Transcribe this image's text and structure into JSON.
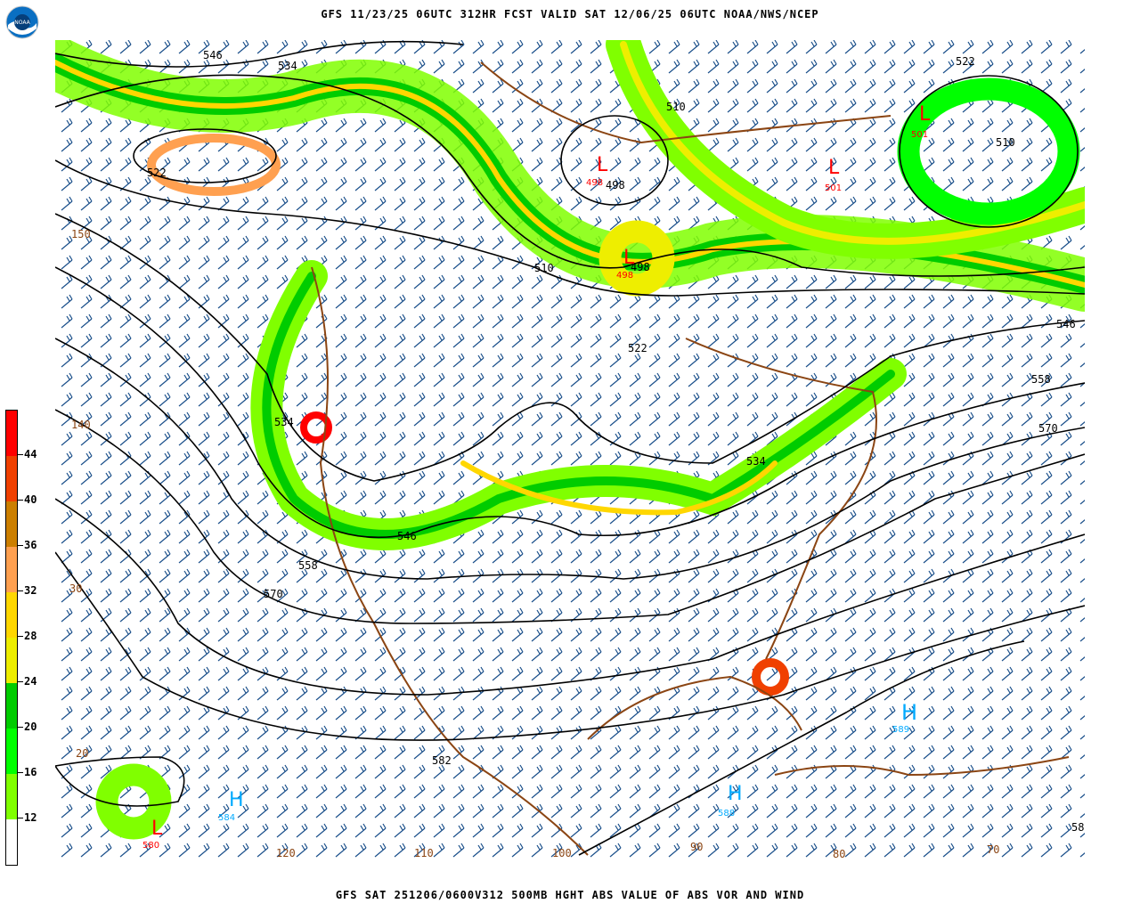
{
  "header": {
    "title": "GFS 11/23/25 06UTC 312HR FCST VALID SAT 12/06/25 06UTC NOAA/NWS/NCEP"
  },
  "footer": {
    "title": "GFS SAT 251206/0600V312 500MB HGHT ABS VALUE OF ABS VOR AND WIND"
  },
  "logo": {
    "text": "NOAA"
  },
  "legend": {
    "ticks": [
      "44",
      "40",
      "36",
      "32",
      "28",
      "24",
      "20",
      "16",
      "12"
    ],
    "bands": [
      {
        "range": "44+",
        "color": "#ff0000"
      },
      {
        "range": "40-44",
        "color": "#f04000"
      },
      {
        "range": "36-40",
        "color": "#cc7f00"
      },
      {
        "range": "32-36",
        "color": "#ffa050"
      },
      {
        "range": "28-32",
        "color": "#ffd700"
      },
      {
        "range": "24-28",
        "color": "#eeee00"
      },
      {
        "range": "20-24",
        "color": "#00cc00"
      },
      {
        "range": "16-20",
        "color": "#00ff00"
      },
      {
        "range": "12-16",
        "color": "#80ff00"
      },
      {
        "range": "<12",
        "color": "#ffffff"
      }
    ]
  },
  "map": {
    "contour_labels": [
      "546",
      "534",
      "522",
      "510",
      "498",
      "498",
      "510",
      "522",
      "510",
      "510",
      "546",
      "558",
      "570",
      "534",
      "522",
      "546",
      "558",
      "570",
      "582",
      "534"
    ],
    "lon_lat_labels": [
      "150",
      "140",
      "30",
      "20",
      "120",
      "110",
      "100",
      "90",
      "80",
      "70",
      "58"
    ],
    "lows": [
      {
        "symbol": "L",
        "value": "501"
      },
      {
        "symbol": "L",
        "value": "501"
      },
      {
        "symbol": "L",
        "value": "498"
      },
      {
        "symbol": "L",
        "value": "498"
      },
      {
        "symbol": "L",
        "value": "580"
      }
    ],
    "highs": [
      {
        "symbol": "H",
        "value": "589"
      },
      {
        "symbol": "H",
        "value": "588"
      },
      {
        "symbol": "H",
        "value": "584"
      }
    ],
    "colors": {
      "contour": "#000000",
      "barb": "#1a4f8a",
      "coast": "#8b4513",
      "high": "#00aaff",
      "low": "#ff0000"
    }
  }
}
